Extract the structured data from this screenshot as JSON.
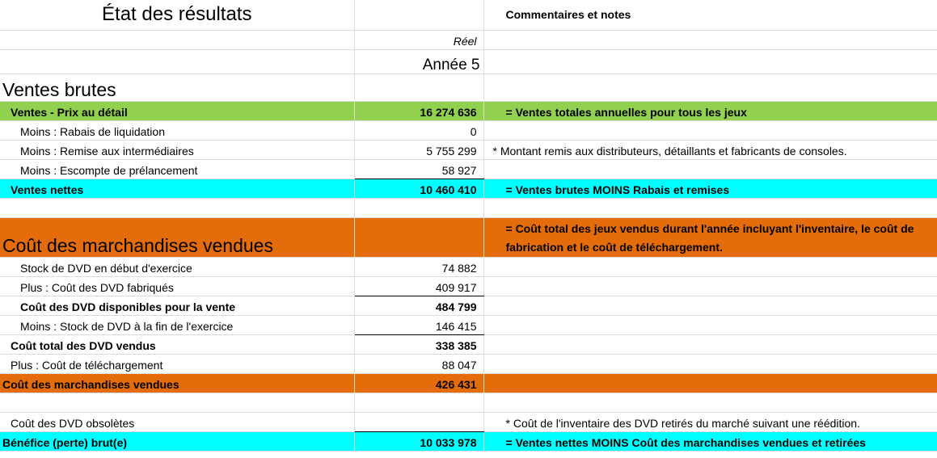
{
  "header": {
    "title": "État des résultats",
    "comments_title": "Commentaires et notes",
    "column_label": "Réel",
    "column_year": "Année 5"
  },
  "rows": [
    {
      "label": "Ventes brutes"
    },
    {
      "label": "Ventes - Prix au détail",
      "value": "16 274 636",
      "comment": "=  Ventes totales annuelles pour tous les jeux"
    },
    {
      "label": "Moins : Rabais de liquidation",
      "value": "0"
    },
    {
      "label": "Moins : Remise aux intermédiaires",
      "value": "5 755 299",
      "comment": "* Montant remis aux distributeurs, détaillants et fabricants de consoles."
    },
    {
      "label": "Moins : Escompte de prélancement",
      "value": "58 927"
    },
    {
      "label": "Ventes nettes",
      "value": "10 460 410",
      "comment": "=  Ventes brutes MOINS Rabais et remises"
    },
    {
      "label": "Coût des marchandises vendues",
      "comment": "=  Coût total des jeux vendus durant l'année incluyant l'inventaire, le coût de fabrication et le coût de téléchargement."
    },
    {
      "label": "Stock de DVD en début d'exercice",
      "value": "74 882"
    },
    {
      "label": "Plus : Coût des DVD fabriqués",
      "value": "409 917"
    },
    {
      "label": "Coût des DVD disponibles pour la vente",
      "value": "484 799"
    },
    {
      "label": "Moins : Stock de DVD à la fin de l'exercice",
      "value": "146 415"
    },
    {
      "label": "Coût total des DVD vendus",
      "value": "338 385"
    },
    {
      "label": "Plus : Coût de téléchargement",
      "value": "88 047"
    },
    {
      "label": "Coût des marchandises vendues",
      "value": "426 431"
    },
    {
      "label": "Coût des DVD obsolètes",
      "comment": "* Coût de l'inventaire des DVD retirés du marché suivant une réédition."
    },
    {
      "label": "Bénéfice (perte) brut(e)",
      "value": "10 033 978",
      "comment": "=  Ventes nettes MOINS Coût des marchandises vendues et retirées"
    }
  ]
}
